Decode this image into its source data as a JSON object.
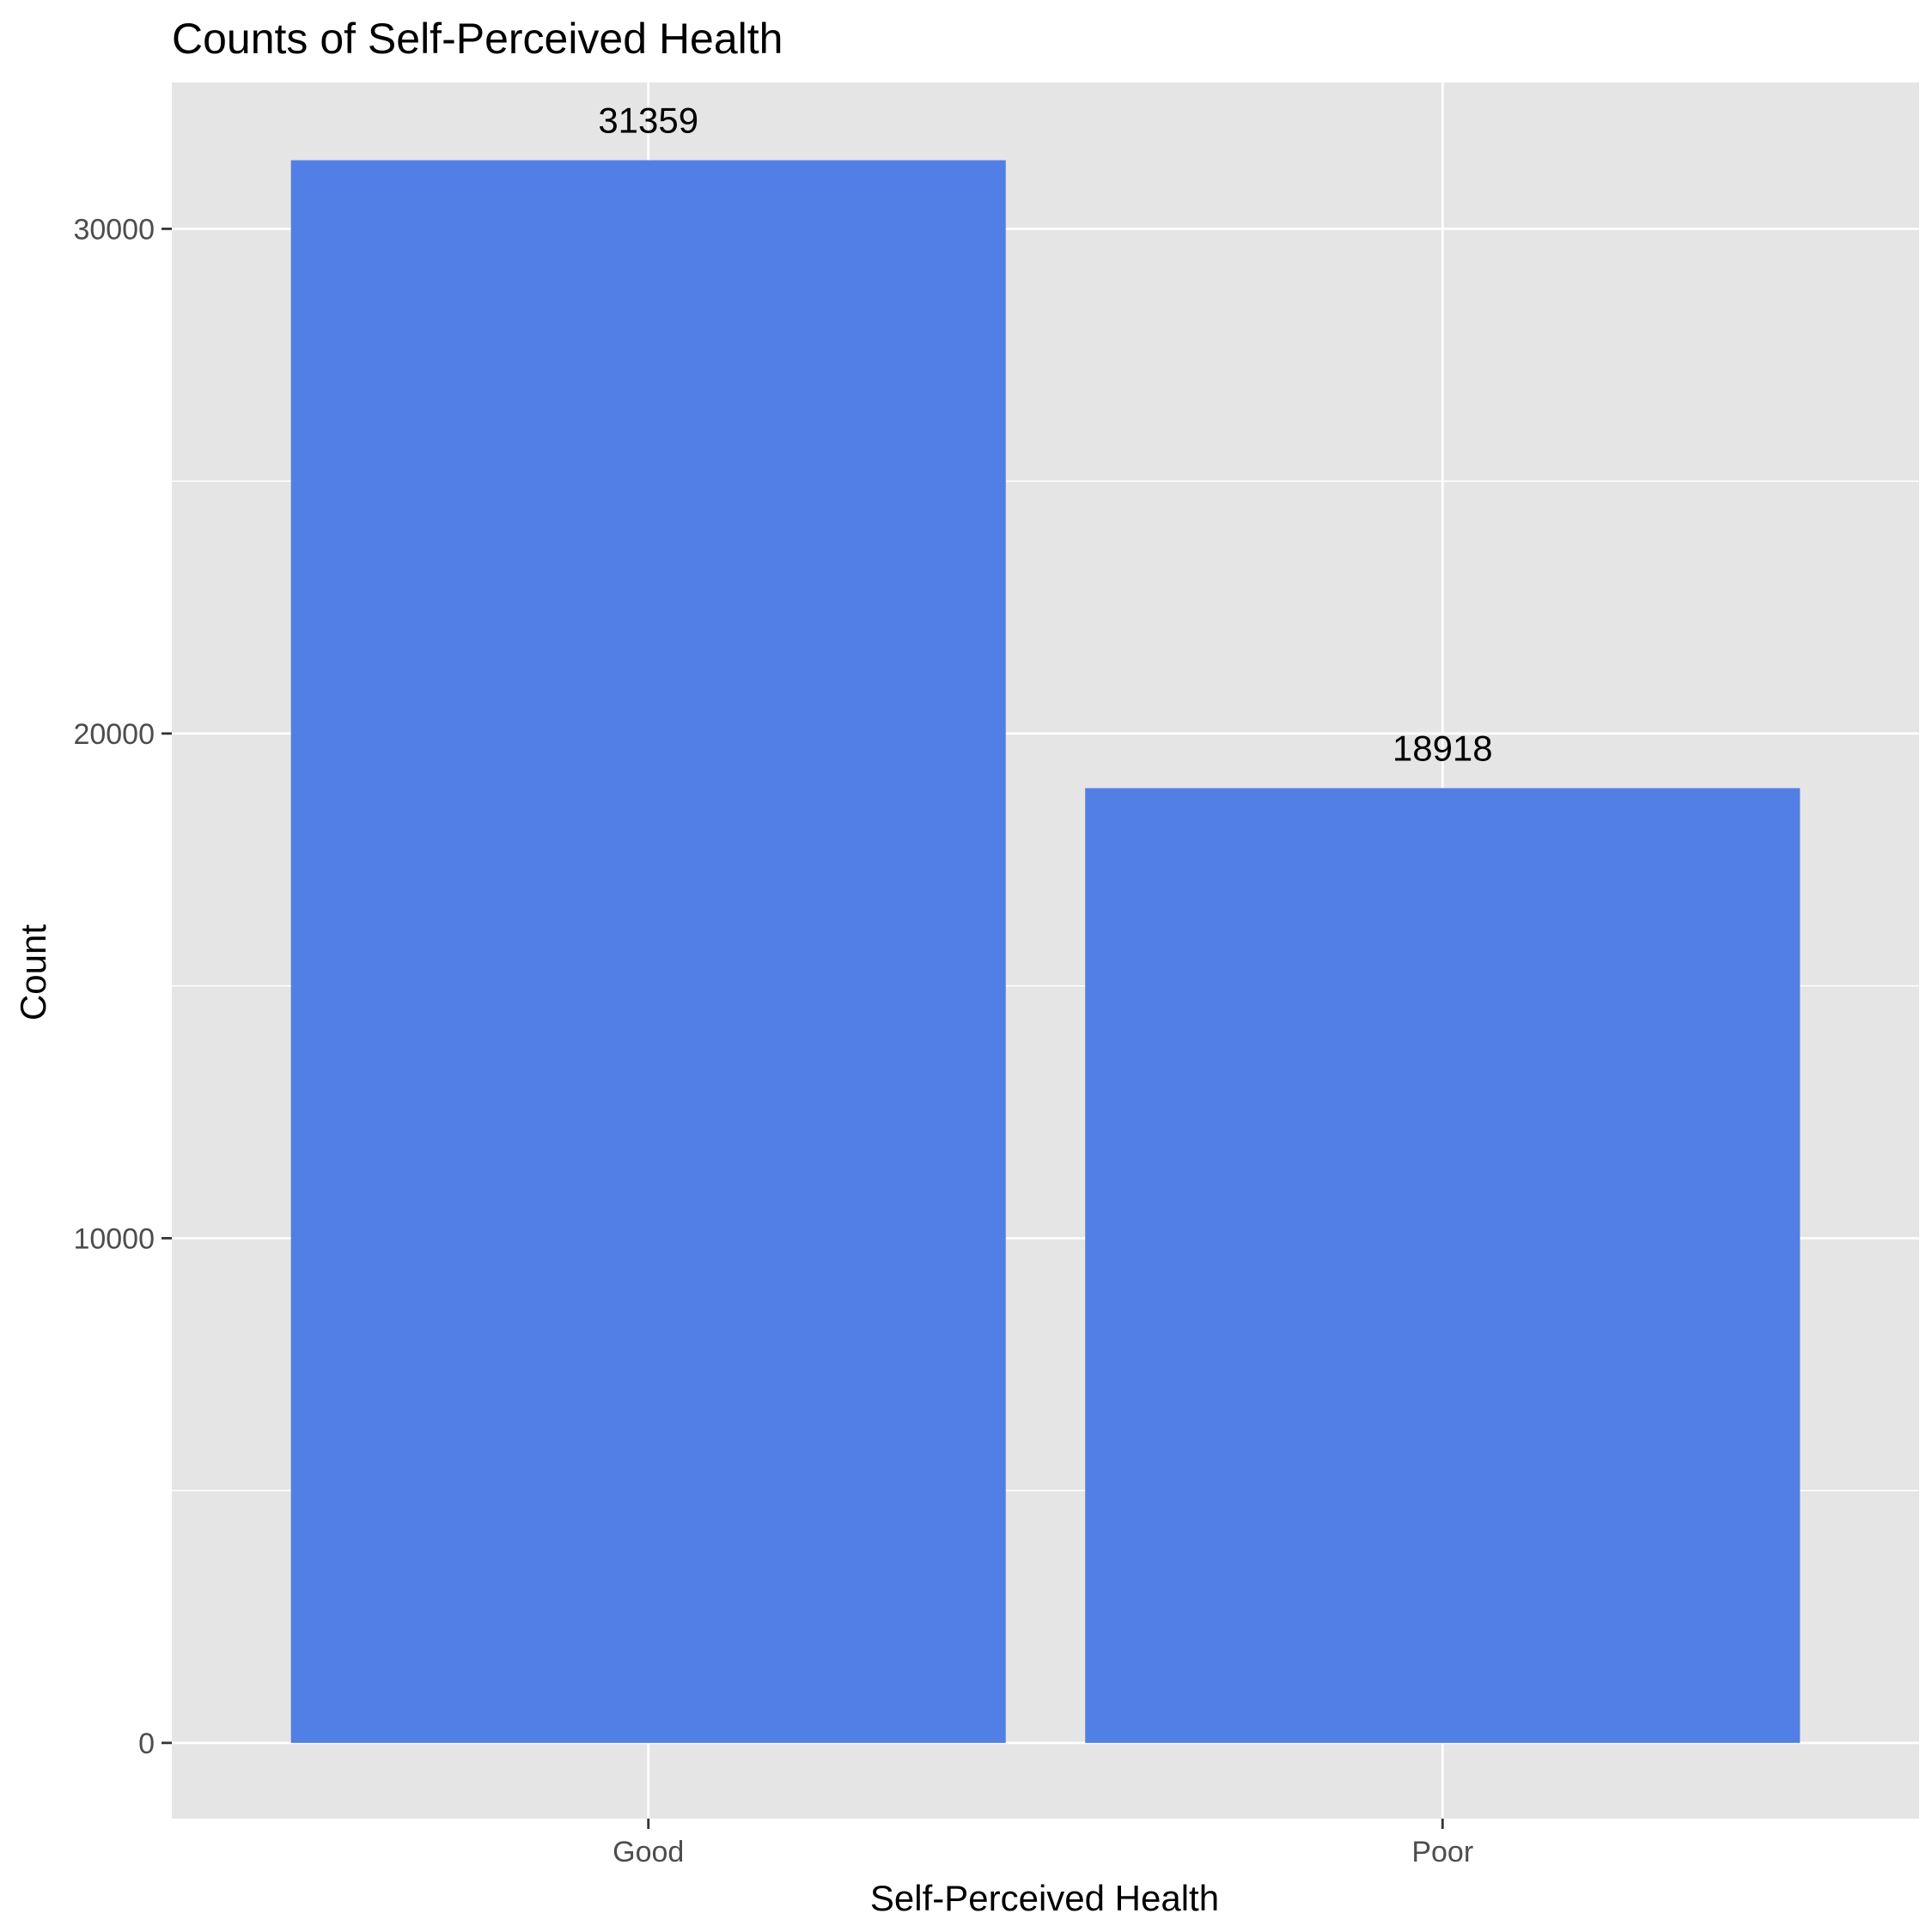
{
  "chart_data": {
    "type": "bar",
    "title": "Counts of Self-Perceived Health",
    "xlabel": "Self-Perceived Health",
    "ylabel": "Count",
    "categories": [
      "Good",
      "Poor"
    ],
    "values": [
      31359,
      18918
    ],
    "data_labels": [
      "31359",
      "18918"
    ],
    "ylim": [
      -1500,
      32900
    ],
    "yticks": [
      0,
      10000,
      20000,
      30000
    ],
    "ytick_labels": [
      "0",
      "10000",
      "20000",
      "30000"
    ],
    "grid": true,
    "legend": "none",
    "colors": {
      "bar": "#527FE6",
      "panel": "#E5E5E5",
      "grid": "#FFFFFF",
      "tick_text": "#4D4D4D",
      "text": "#000000"
    }
  }
}
